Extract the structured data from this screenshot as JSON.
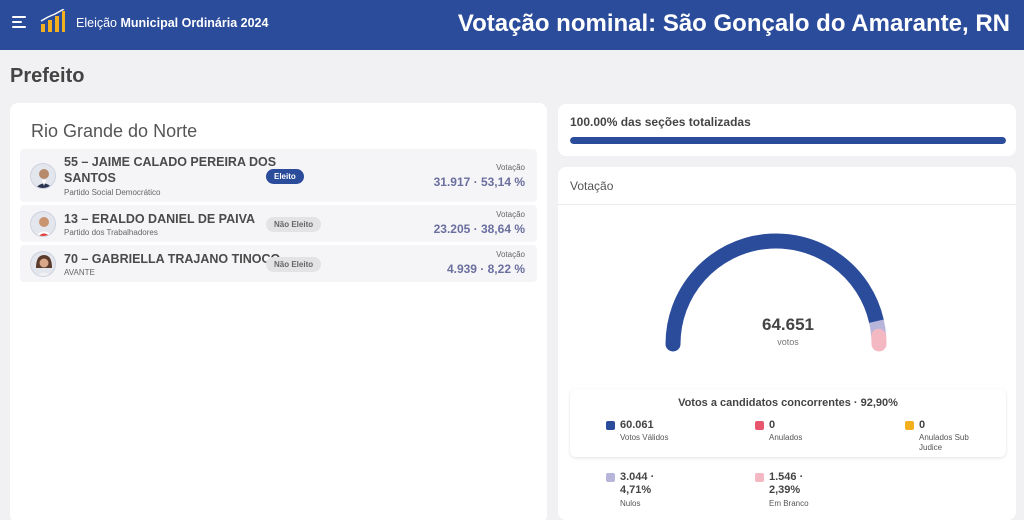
{
  "header": {
    "election_prefix": "Eleição",
    "election_name": "Municipal Ordinária 2024",
    "page_title": "Votação nominal: São Gonçalo do Amarante, RN",
    "brand_color": "#2b4c9b"
  },
  "office": "Prefeito",
  "state": "Rio Grande do Norte",
  "candidates": [
    {
      "name_line1": "55 – JAIME CALADO PEREIRA DOS",
      "name_line2": "SANTOS",
      "party": "Partido Social Democrático",
      "status": "Eleito",
      "vote_label": "Votação",
      "votes": "31.917 · 53,14 %"
    },
    {
      "name_line1": "13 – ERALDO DANIEL DE PAIVA",
      "name_line2": "",
      "party": "Partido dos Trabalhadores",
      "status": "Não Eleito",
      "vote_label": "Votação",
      "votes": "23.205 · 38,64 %"
    },
    {
      "name_line1": "70 – GABRIELLA TRAJANO TINOCO",
      "name_line2": "",
      "party": "AVANTE",
      "status": "Não Eleito",
      "vote_label": "Votação",
      "votes": "4.939 · 8,22 %"
    }
  ],
  "progress": {
    "label": "100.00% das seções totalizadas",
    "fraction": 1.0
  },
  "votacao": {
    "title": "Votação",
    "total": "64.651",
    "unit": "votos",
    "summary_title": "Votos a candidatos concorrentes · 92,90%",
    "gauge_colors": {
      "validos": "#2b4c9b",
      "nulos": "#b7b5da",
      "brancos": "#f4b8c3"
    },
    "legend": [
      {
        "value": "60.061",
        "label": "Votos Válidos",
        "color": "#2b4c9b"
      },
      {
        "value": "0",
        "label": "Anulados",
        "color": "#e8566d"
      },
      {
        "value": "0",
        "label": "Anulados Sub Judice",
        "color": "#f2b01e"
      },
      {
        "value": "3.044 · 4,71%",
        "label": "Nulos",
        "color": "#b7b5da"
      },
      {
        "value": "1.546 · 2,39%",
        "label": "Em Branco",
        "color": "#f4b8c3"
      }
    ]
  }
}
